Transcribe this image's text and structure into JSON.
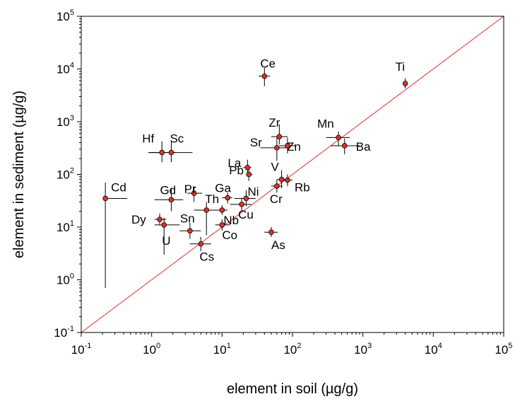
{
  "chart_data": {
    "type": "scatter",
    "xlabel": "element in soil (µg/g)",
    "ylabel": "element in sediment (µg/g)",
    "xscale": "log",
    "yscale": "log",
    "xlim": [
      0.1,
      100000
    ],
    "ylim": [
      0.1,
      100000
    ],
    "ticks": [
      "10-1",
      "100",
      "101",
      "102",
      "103",
      "104",
      "105"
    ],
    "reference_line": "1:1",
    "colors": {
      "points": "#e0302a",
      "reference_line": "#e0302a",
      "axes": "#000000"
    },
    "points": [
      {
        "label": "Ce",
        "x": 40,
        "y": 7300,
        "xerr": [
          33,
          48
        ],
        "yerr": [
          4700,
          10500
        ]
      },
      {
        "label": "Ti",
        "x": 4000,
        "y": 5300,
        "xerr": [
          4000,
          4000
        ],
        "yerr": [
          4300,
          6700
        ]
      },
      {
        "label": "Mn",
        "x": 450,
        "y": 500,
        "xerr": [
          300,
          650
        ],
        "yerr": [
          350,
          650
        ]
      },
      {
        "label": "Ba",
        "x": 550,
        "y": 350,
        "xerr": [
          350,
          900
        ],
        "yerr": [
          240,
          480
        ]
      },
      {
        "label": "Zr",
        "x": 65,
        "y": 520,
        "xerr": [
          50,
          85
        ],
        "yerr": [
          370,
          900
        ]
      },
      {
        "label": "Zn",
        "x": 85,
        "y": 350,
        "xerr": [
          65,
          110
        ],
        "yerr": [
          250,
          500
        ]
      },
      {
        "label": "Sr",
        "x": 60,
        "y": 320,
        "xerr": [
          35,
          85
        ],
        "yerr": [
          180,
          500
        ]
      },
      {
        "label": "Hf",
        "x": 1.4,
        "y": 260,
        "xerr": [
          0.9,
          2.2
        ],
        "yerr": [
          170,
          420
        ]
      },
      {
        "label": "Sc",
        "x": 1.9,
        "y": 260,
        "xerr": [
          0.9,
          3.8
        ],
        "yerr": [
          170,
          420
        ]
      },
      {
        "label": "La",
        "x": 23,
        "y": 135,
        "xerr": [
          20,
          26
        ],
        "yerr": [
          95,
          190
        ]
      },
      {
        "label": "Pb",
        "x": 24,
        "y": 100,
        "xerr": [
          22,
          27
        ],
        "yerr": [
          75,
          135
        ]
      },
      {
        "label": "V",
        "x": 70,
        "y": 80,
        "xerr": [
          60,
          85
        ],
        "yerr": [
          55,
          120
        ]
      },
      {
        "label": "Rb",
        "x": 85,
        "y": 78,
        "xerr": [
          75,
          100
        ],
        "yerr": [
          60,
          100
        ]
      },
      {
        "label": "Cr",
        "x": 60,
        "y": 60,
        "xerr": [
          50,
          72
        ],
        "yerr": [
          45,
          80
        ]
      },
      {
        "label": "Cd",
        "x": 0.22,
        "y": 35,
        "xerr": [
          0.22,
          0.45
        ],
        "yerr": [
          0.7,
          70
        ]
      },
      {
        "label": "Gd",
        "x": 1.9,
        "y": 33,
        "xerr": [
          1.1,
          2.8
        ],
        "yerr": [
          20,
          55
        ]
      },
      {
        "label": "Pr",
        "x": 4,
        "y": 44,
        "xerr": [
          3.2,
          5.2
        ],
        "yerr": [
          30,
          60
        ]
      },
      {
        "label": "Th",
        "x": 6,
        "y": 21,
        "xerr": [
          4,
          9
        ],
        "yerr": [
          7,
          30
        ]
      },
      {
        "label": "Ga",
        "x": 12,
        "y": 36,
        "xerr": [
          10,
          14
        ],
        "yerr": [
          28,
          45
        ]
      },
      {
        "label": "Ni",
        "x": 22,
        "y": 35,
        "xerr": [
          15,
          30
        ],
        "yerr": [
          25,
          50
        ]
      },
      {
        "label": "Cu",
        "x": 19,
        "y": 27,
        "xerr": [
          13,
          26
        ],
        "yerr": [
          20,
          36
        ]
      },
      {
        "label": "Nb",
        "x": 10,
        "y": 21,
        "xerr": [
          8.5,
          12
        ],
        "yerr": [
          17,
          26
        ]
      },
      {
        "label": "Co",
        "x": 10,
        "y": 11,
        "xerr": [
          8,
          13
        ],
        "yerr": [
          8.5,
          14
        ]
      },
      {
        "label": "Dy",
        "x": 1.3,
        "y": 14,
        "xerr": [
          1.1,
          1.6
        ],
        "yerr": [
          11,
          18
        ]
      },
      {
        "label": "U",
        "x": 1.5,
        "y": 11,
        "xerr": [
          1.1,
          2.5
        ],
        "yerr": [
          3,
          15
        ]
      },
      {
        "label": "Sn",
        "x": 3.5,
        "y": 8.5,
        "xerr": [
          2.5,
          5
        ],
        "yerr": [
          6,
          12
        ]
      },
      {
        "label": "Cs",
        "x": 5,
        "y": 4.8,
        "xerr": [
          3.5,
          7
        ],
        "yerr": [
          3.5,
          6.5
        ]
      },
      {
        "label": "As",
        "x": 50,
        "y": 8,
        "xerr": [
          40,
          62
        ],
        "yerr": [
          6.5,
          10
        ]
      }
    ]
  }
}
